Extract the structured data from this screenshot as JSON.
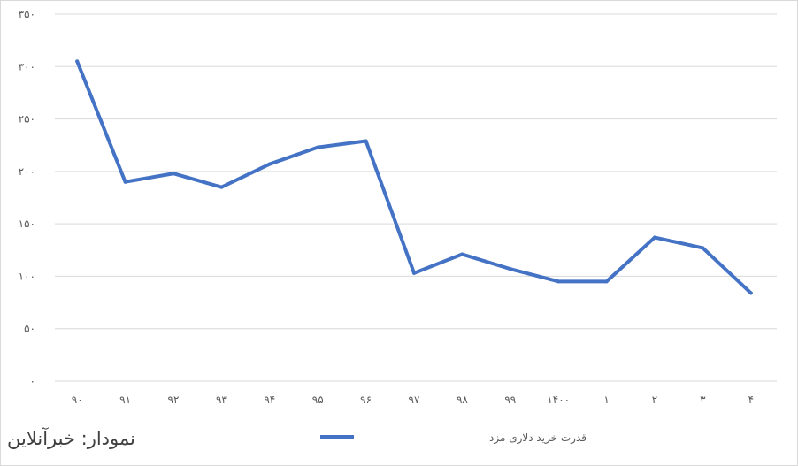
{
  "chart_data": {
    "type": "line",
    "categories": [
      "۹۰",
      "۹۱",
      "۹۲",
      "۹۳",
      "۹۴",
      "۹۵",
      "۹۶",
      "۹۷",
      "۹۸",
      "۹۹",
      "۱۴۰۰",
      "۱",
      "۲",
      "۳",
      "۴"
    ],
    "series": [
      {
        "name": "قدرت خرید دلاری مزد",
        "color": "#4472c4",
        "values": [
          305,
          190,
          198,
          185,
          207,
          223,
          229,
          103,
          121,
          107,
          95,
          95,
          137,
          127,
          84
        ]
      }
    ],
    "ylim": [
      0,
      350
    ],
    "yticks": [
      0,
      50,
      100,
      150,
      200,
      250,
      300,
      350
    ],
    "ytick_labels": [
      "۰",
      "۵۰",
      "۱۰۰",
      "۱۵۰",
      "۲۰۰",
      "۲۵۰",
      "۳۰۰",
      "۳۵۰"
    ],
    "grid": true,
    "legend_position": "bottom",
    "title": "",
    "xlabel": "",
    "ylabel": ""
  },
  "credit": "نمودار: خبرآنلاین"
}
